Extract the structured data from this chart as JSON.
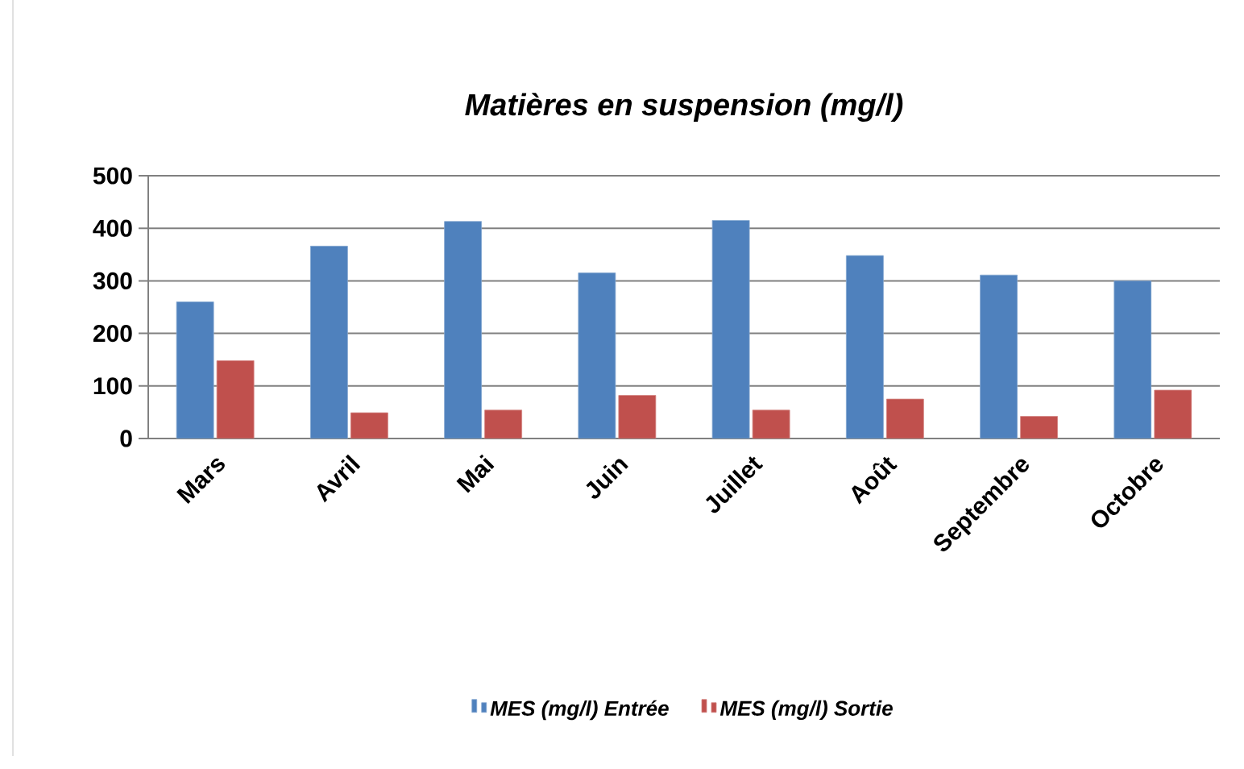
{
  "chart_data": {
    "type": "bar",
    "title": "Matières en suspension (mg/l)",
    "categories": [
      "Mars",
      "Avril",
      "Mai",
      "Juin",
      "Juillet",
      "Août",
      "Septembre",
      "Octobre"
    ],
    "series": [
      {
        "name": "MES (mg/l) Entrée",
        "color": "#4f81bd",
        "values": [
          260,
          366,
          413,
          315,
          415,
          348,
          311,
          300
        ]
      },
      {
        "name": "MES (mg/l) Sortie",
        "color": "#c0504d",
        "values": [
          148,
          49,
          54,
          82,
          54,
          75,
          42,
          92
        ]
      }
    ],
    "ylim": [
      0,
      500
    ],
    "yticks": [
      0,
      100,
      200,
      300,
      400,
      500
    ],
    "grid": "y",
    "legend": "bottom"
  }
}
